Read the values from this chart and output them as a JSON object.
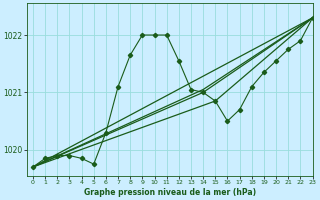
{
  "title": "Graphe pression niveau de la mer (hPa)",
  "bg_color": "#cceeff",
  "grid_color": "#99dddd",
  "line_color": "#1a5c1a",
  "xlim": [
    -0.5,
    23
  ],
  "ylim": [
    1019.55,
    1022.55
  ],
  "yticks": [
    1020,
    1021,
    1022
  ],
  "xticks": [
    0,
    1,
    2,
    3,
    4,
    5,
    6,
    7,
    8,
    9,
    10,
    11,
    12,
    13,
    14,
    15,
    16,
    17,
    18,
    19,
    20,
    21,
    22,
    23
  ],
  "main_y": [
    1019.7,
    1019.85,
    1019.9,
    1019.9,
    1019.85,
    1019.75,
    1020.3,
    1021.1,
    1021.65,
    1022.0,
    1022.0,
    1022.0,
    1021.55,
    1021.05,
    1021.0,
    1020.85,
    1020.5,
    1020.7,
    1021.1,
    1021.35,
    1021.55,
    1021.75,
    1021.9,
    1022.3
  ],
  "trend_lines": [
    {
      "x": [
        0,
        23
      ],
      "y": [
        1019.7,
        1022.3
      ]
    },
    {
      "x": [
        0,
        14,
        23
      ],
      "y": [
        1019.7,
        1021.0,
        1022.3
      ]
    },
    {
      "x": [
        0,
        14,
        23
      ],
      "y": [
        1019.7,
        1021.05,
        1022.3
      ]
    },
    {
      "x": [
        0,
        15,
        23
      ],
      "y": [
        1019.7,
        1020.85,
        1022.3
      ]
    }
  ]
}
